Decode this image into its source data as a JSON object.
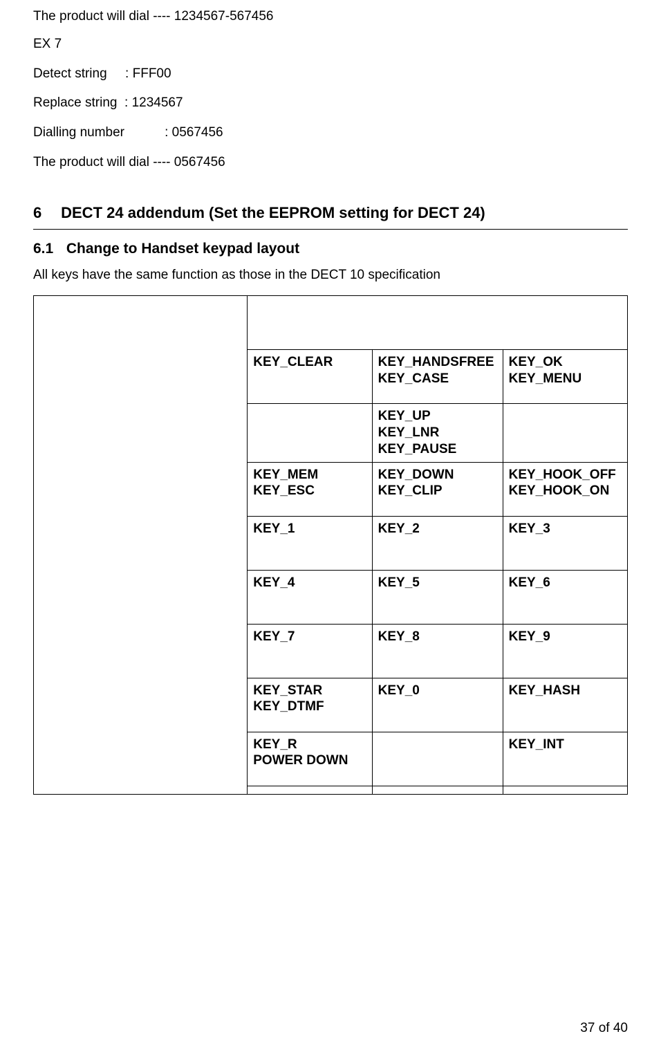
{
  "intro": {
    "line0": "The product will dial ---- 1234567-567456",
    "ex_label": "EX 7",
    "detect_label": "Detect string",
    "detect_value": "FFF00",
    "replace_label": "Replace string",
    "replace_value": "1234567",
    "dialling_label": "Dialling number",
    "dialling_value": "0567456",
    "result_line": "The product will dial ---- 0567456"
  },
  "section6": {
    "number": "6",
    "title": "DECT 24 addendum (Set the EEPROM setting for DECT 24)"
  },
  "section6_1": {
    "number": "6.1",
    "title": "Change to Handset keypad layout",
    "note": "All keys have the same function as those in the DECT 10 specification"
  },
  "table": {
    "rows": [
      [
        [
          "KEY_CLEAR"
        ],
        [
          "KEY_HANDSFREE",
          "KEY_CASE"
        ],
        [
          "KEY_OK",
          "KEY_MENU"
        ]
      ],
      [
        [
          ""
        ],
        [
          "KEY_UP",
          "KEY_LNR",
          "KEY_PAUSE"
        ],
        [
          ""
        ]
      ],
      [
        [
          "KEY_MEM",
          "KEY_ESC"
        ],
        [
          "KEY_DOWN",
          "KEY_CLIP"
        ],
        [
          "KEY_HOOK_OFF",
          "KEY_HOOK_ON"
        ]
      ],
      [
        [
          "KEY_1"
        ],
        [
          "KEY_2"
        ],
        [
          "KEY_3"
        ]
      ],
      [
        [
          "KEY_4"
        ],
        [
          "KEY_5"
        ],
        [
          "KEY_6"
        ]
      ],
      [
        [
          "KEY_7"
        ],
        [
          "KEY_8"
        ],
        [
          "KEY_9"
        ]
      ],
      [
        [
          "KEY_STAR",
          "KEY_DTMF"
        ],
        [
          "KEY_0"
        ],
        [
          "KEY_HASH"
        ]
      ],
      [
        [
          "KEY_R",
          "POWER DOWN"
        ],
        [
          ""
        ],
        [
          "KEY_INT"
        ]
      ]
    ],
    "col_widths_pct": [
      36,
      21,
      22,
      21
    ]
  },
  "footer": {
    "page": "37",
    "of": "of",
    "total": "40"
  }
}
